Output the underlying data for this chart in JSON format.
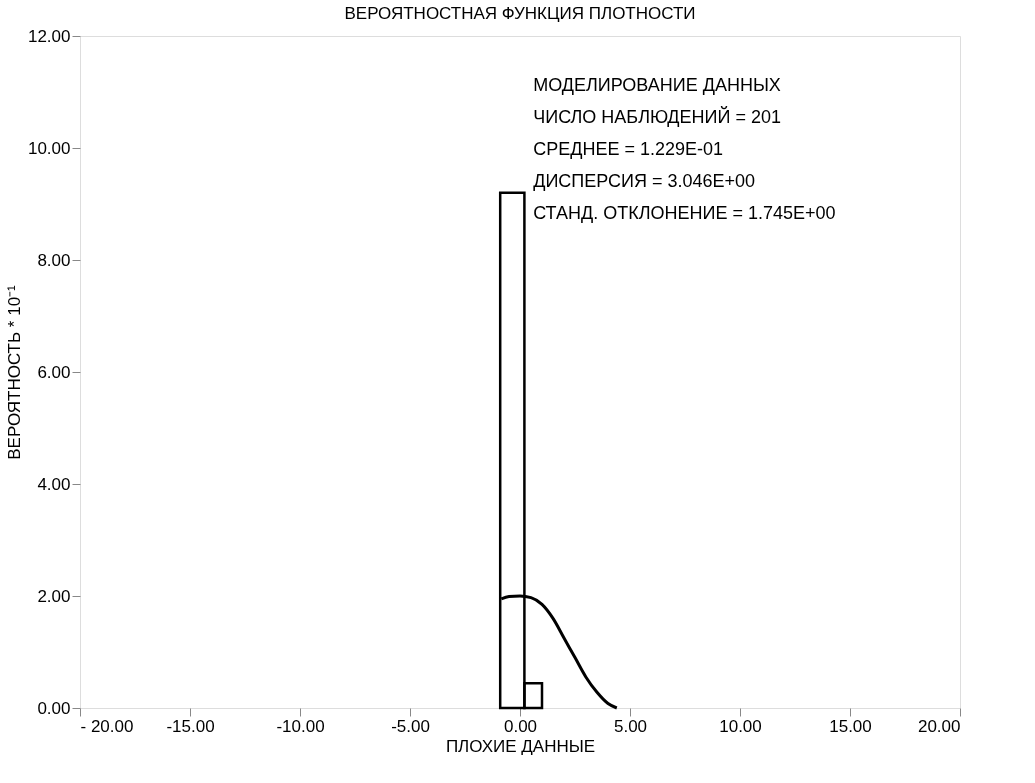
{
  "chart_data": {
    "type": "histogram",
    "title": "ВЕРОЯТНОСТНАЯ ФУНКЦИЯ ПЛОТНОСТИ",
    "xlabel": "ПЛОХИЕ ДАННЫЕ",
    "ylabel": "ВЕРОЯТНОСТЬ * 10⁻¹",
    "bins": [
      -0.9,
      0.2,
      1.0
    ],
    "values": [
      9.2,
      0.44
    ],
    "color": "#000000",
    "series": [
      {
        "type": "line",
        "color": "#000000",
        "x": [
          -0.85,
          -0.5,
          0,
          0.5,
          1,
          1.5,
          2,
          2.5,
          3,
          3.5,
          4,
          4.4
        ],
        "values": [
          1.95,
          1.99,
          2.0,
          1.97,
          1.85,
          1.6,
          1.25,
          0.9,
          0.55,
          0.28,
          0.08,
          0.0
        ]
      }
    ],
    "xlim": [
      -20,
      20
    ],
    "ylim": [
      0,
      12
    ],
    "xticks": [
      {
        "value": -20,
        "label": "- 20.00"
      },
      {
        "value": -15,
        "label": "-15.00"
      },
      {
        "value": -10,
        "label": "-10.00"
      },
      {
        "value": -5,
        "label": "-5.00"
      },
      {
        "value": 0,
        "label": "0.00"
      },
      {
        "value": 5,
        "label": "5.00"
      },
      {
        "value": 10,
        "label": "10.00"
      },
      {
        "value": 15,
        "label": "15.00"
      },
      {
        "value": 20,
        "label": "20.00"
      }
    ],
    "yticks": [
      {
        "value": 0,
        "label": "0.00"
      },
      {
        "value": 2,
        "label": "2.00"
      },
      {
        "value": 4,
        "label": "4.00"
      },
      {
        "value": 6,
        "label": "6.00"
      },
      {
        "value": 8,
        "label": "8.00"
      },
      {
        "value": 10,
        "label": "10.00"
      },
      {
        "value": 12,
        "label": "12.00"
      }
    ],
    "annotations": [
      "МОДЕЛИРОВАНИЕ ДАННЫХ",
      "ЧИСЛО НАБЛЮДЕНИЙ =          201",
      "СРЕДНЕЕ                      = 1.229E-01",
      "ДИСПЕРСИЯ                  = 3.046E+00",
      "СТАНД. ОТКЛОНЕНИЕ = 1.745E+00"
    ],
    "grid": false,
    "marker": "none",
    "line_style": "solid"
  }
}
